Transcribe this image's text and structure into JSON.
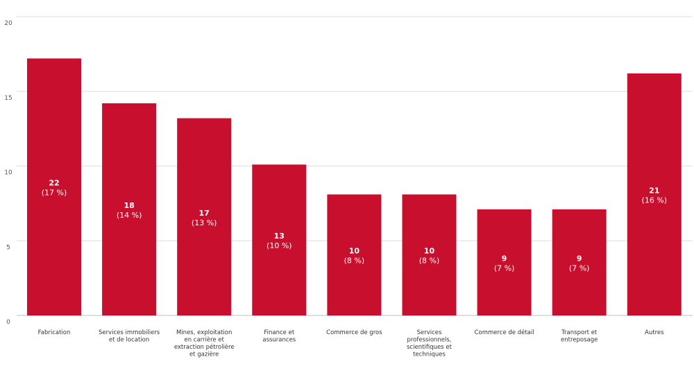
{
  "chart_data": {
    "type": "bar",
    "title": "",
    "xlabel": "",
    "ylabel": "",
    "ylim": [
      0,
      20
    ],
    "yticks": [
      "0",
      "5",
      "10",
      "15",
      "20"
    ],
    "grid": true,
    "bar_color": "#c8102e",
    "categories": [
      [
        "Fabrication"
      ],
      [
        "Services immobiliers",
        "et de location"
      ],
      [
        "Mines, exploitation",
        "en carrière et",
        "extraction pétrolière",
        "et gazière"
      ],
      [
        "Finance et",
        "assurances"
      ],
      [
        "Commerce de gros"
      ],
      [
        "Services",
        "professionnels,",
        "scientifiques et",
        "techniques"
      ],
      [
        "Commerce de détail"
      ],
      [
        "Transport et",
        "entreposage"
      ],
      [
        "Autres"
      ]
    ],
    "values": [
      17.2,
      14.2,
      13.2,
      10.1,
      8.1,
      8.1,
      7.1,
      7.1,
      16.2
    ],
    "value_labels": [
      "22",
      "18",
      "17",
      "13",
      "10",
      "10",
      "9",
      "9",
      "21"
    ],
    "percent_labels": [
      "(17 %)",
      "(14 %)",
      "(13 %)",
      "(10 %)",
      "(8 %)",
      "(8 %)",
      "(7 %)",
      "(7 %)",
      "(16 %)"
    ]
  }
}
